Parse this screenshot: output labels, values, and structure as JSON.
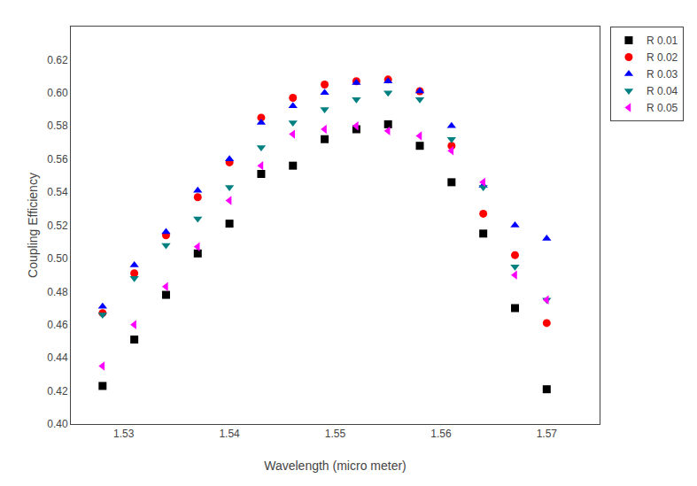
{
  "chart_data": {
    "type": "scatter",
    "xlabel": "Wavelength (micro meter)",
    "ylabel": "Coupling Efficiency",
    "xlim": [
      1.525,
      1.575
    ],
    "ylim": [
      0.4,
      0.64
    ],
    "xticks": [
      1.53,
      1.54,
      1.55,
      1.56,
      1.57
    ],
    "yticks": [
      {
        "value": 0.4,
        "label": "0.40"
      },
      0.42,
      0.44,
      0.46,
      0.48,
      {
        "value": 0.5,
        "label": "0.50"
      },
      0.52,
      0.54,
      0.56,
      0.58,
      {
        "value": 0.6,
        "label": "0.60"
      },
      0.62
    ],
    "grid": false,
    "legend": "upper right",
    "series": [
      {
        "name": "R 0.01",
        "color": "black",
        "marker": "square",
        "x": [
          1.528,
          1.531,
          1.534,
          1.537,
          1.54,
          1.543,
          1.546,
          1.549,
          1.552,
          1.555,
          1.558,
          1.561,
          1.564,
          1.567,
          1.57
        ],
        "values": [
          0.423,
          0.451,
          0.478,
          0.503,
          0.521,
          0.551,
          0.556,
          0.572,
          0.578,
          0.581,
          0.568,
          0.546,
          0.515,
          0.47,
          0.421
        ]
      },
      {
        "name": "R 0.02",
        "color": "#ff0000",
        "marker": "circle",
        "x": [
          1.528,
          1.531,
          1.534,
          1.537,
          1.54,
          1.543,
          1.546,
          1.549,
          1.552,
          1.555,
          1.558,
          1.561,
          1.564,
          1.567,
          1.57
        ],
        "values": [
          0.467,
          0.491,
          0.514,
          0.537,
          0.558,
          0.585,
          0.597,
          0.605,
          0.607,
          0.608,
          0.601,
          0.568,
          0.527,
          0.502,
          0.461
        ]
      },
      {
        "name": "R 0.03",
        "color": "#0000ff",
        "marker": "triangle-up",
        "x": [
          1.528,
          1.531,
          1.534,
          1.537,
          1.54,
          1.543,
          1.546,
          1.549,
          1.552,
          1.555,
          1.558,
          1.561,
          1.564,
          1.567,
          1.57
        ],
        "values": [
          0.471,
          0.496,
          0.516,
          0.541,
          0.56,
          0.582,
          0.592,
          0.6,
          0.606,
          0.607,
          0.601,
          0.58,
          0.544,
          0.52,
          0.512
        ]
      },
      {
        "name": "R 0.04",
        "color": "#008080",
        "marker": "triangle-down",
        "x": [
          1.528,
          1.531,
          1.534,
          1.537,
          1.54,
          1.543,
          1.546,
          1.549,
          1.552,
          1.555,
          1.558,
          1.561,
          1.564,
          1.567,
          1.57
        ],
        "values": [
          0.466,
          0.488,
          0.508,
          0.524,
          0.543,
          0.567,
          0.582,
          0.59,
          0.596,
          0.6,
          0.596,
          0.572,
          0.543,
          0.495,
          0.475
        ]
      },
      {
        "name": "R 0.05",
        "color": "#ff00ff",
        "marker": "triangle-left",
        "x": [
          1.528,
          1.531,
          1.534,
          1.537,
          1.54,
          1.543,
          1.546,
          1.549,
          1.552,
          1.555,
          1.558,
          1.561,
          1.564,
          1.567,
          1.57
        ],
        "values": [
          0.435,
          0.46,
          0.483,
          0.507,
          0.535,
          0.556,
          0.575,
          0.578,
          0.58,
          0.577,
          0.574,
          0.565,
          0.546,
          0.49,
          0.475
        ]
      }
    ]
  }
}
